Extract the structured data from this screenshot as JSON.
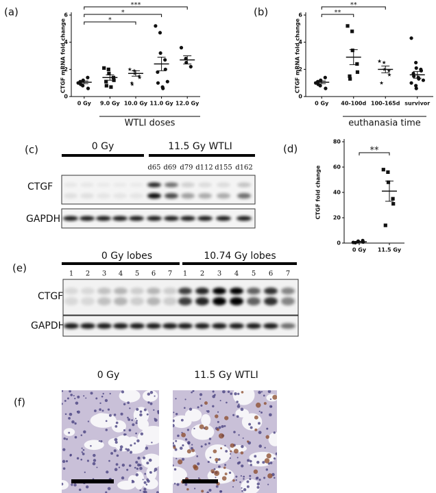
{
  "chart_data": [
    {
      "type": "dotplot",
      "panel": "(a)",
      "y_label": "CTGF mRNA fold change",
      "x_group_label": "WTLI doses",
      "categories": [
        "0 Gy",
        "9.0 Gy",
        "10.0 Gy",
        "11.0 Gy",
        "12.0 Gy"
      ],
      "markers": [
        "circle",
        "square",
        "star",
        "circle",
        "circle"
      ],
      "points": [
        [
          1.0,
          0.8,
          1.2,
          1.4,
          0.6,
          1.1,
          0.9
        ],
        [
          2.1,
          2.0,
          1.7,
          1.4,
          1.2,
          1.1,
          0.8,
          0.7
        ],
        [
          2.0,
          1.9,
          1.7,
          1.5,
          1.4,
          1.0,
          0.9
        ],
        [
          5.2,
          4.7,
          3.2,
          2.7,
          2.0,
          1.8,
          1.0,
          0.7,
          0.6,
          1.1
        ],
        [
          3.6,
          2.8,
          2.5,
          2.2
        ]
      ],
      "means": [
        1.05,
        1.4,
        1.7,
        2.4,
        2.7
      ],
      "sems": [
        0.1,
        0.2,
        0.2,
        0.5,
        0.3
      ],
      "comparisons": [
        {
          "pair": [
            0,
            2
          ],
          "label": "*"
        },
        {
          "pair": [
            0,
            3
          ],
          "label": "*"
        },
        {
          "pair": [
            0,
            4
          ],
          "label": "***"
        }
      ],
      "color": "#111111",
      "ylim": [
        0,
        6
      ],
      "yticks": [
        0,
        2,
        4,
        6
      ]
    },
    {
      "type": "dotplot",
      "panel": "(b)",
      "y_label": "CTGF mRNA fold change",
      "x_group_label": "euthanasia time",
      "categories": [
        "0 Gy",
        "40-100d",
        "100-165d",
        "survivor"
      ],
      "markers": [
        "circle",
        "square",
        "star",
        "circle"
      ],
      "points": [
        [
          1.0,
          0.8,
          1.2,
          1.4,
          0.6,
          1.1,
          0.9
        ],
        [
          5.2,
          4.8,
          3.4,
          2.4,
          1.8,
          1.5,
          1.3
        ],
        [
          2.6,
          2.5,
          2.0,
          1.9,
          1.6,
          1.0
        ],
        [
          4.3,
          2.5,
          2.1,
          2.0,
          1.9,
          1.7,
          1.5,
          1.4,
          1.3,
          1.2,
          1.0,
          0.8,
          0.6
        ]
      ],
      "means": [
        1.05,
        2.9,
        2.0,
        1.6
      ],
      "sems": [
        0.1,
        0.55,
        0.25,
        0.25
      ],
      "comparisons": [
        {
          "pair": [
            0,
            1
          ],
          "label": "**"
        },
        {
          "pair": [
            0,
            2
          ],
          "label": "**"
        }
      ],
      "color": "#111111",
      "ylim": [
        0,
        6
      ],
      "yticks": [
        0,
        2,
        4,
        6
      ]
    },
    {
      "type": "dotplot",
      "panel": "(d)",
      "y_label": "CTGF fold change",
      "categories": [
        "0 Gy",
        "11.5 Gy"
      ],
      "markers": [
        "circle",
        "square"
      ],
      "points": [
        [
          0.5,
          1.0,
          1.5,
          2.0,
          0.8,
          0.3
        ],
        [
          58,
          56,
          48,
          35,
          31,
          14
        ]
      ],
      "means": [
        1.0,
        41
      ],
      "sems": [
        0.3,
        8
      ],
      "comparisons": [
        {
          "pair": [
            0,
            1
          ],
          "label": "**"
        }
      ],
      "color": "#111111",
      "ylim": [
        0,
        80
      ],
      "yticks": [
        0,
        20,
        40,
        60,
        80
      ]
    }
  ],
  "blot_c": {
    "panel": "(c)",
    "group_labels": [
      "0 Gy",
      "11.5 Gy WTLI"
    ],
    "lanes": [
      "d65",
      "d69",
      "d79",
      "d112",
      "d155",
      "d162"
    ],
    "rows": [
      "CTGF",
      "GAPDH"
    ]
  },
  "blot_e": {
    "panel": "(e)",
    "group_labels": [
      "0 Gy lobes",
      "10.74 Gy lobes"
    ],
    "lanes_0": [
      "1",
      "2",
      "3",
      "4",
      "5",
      "6",
      "7"
    ],
    "lanes_1": [
      "1",
      "2",
      "3",
      "4",
      "5",
      "6",
      "7"
    ],
    "rows": [
      "CTGF",
      "GAPDH"
    ]
  },
  "histology_f": {
    "panel": "(f)",
    "labels": [
      "0 Gy",
      "11.5 Gy WTLI"
    ]
  }
}
